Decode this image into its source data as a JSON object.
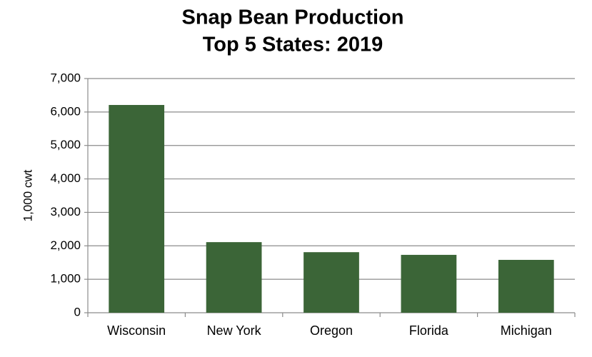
{
  "chart_data": {
    "type": "bar",
    "title": "Snap Bean Production",
    "subtitle": "Top 5 States:  2019",
    "y_label": "1,000 cwt",
    "categories": [
      "Wisconsin",
      "New York",
      "Oregon",
      "Florida",
      "Michigan"
    ],
    "values": [
      6210,
      2110,
      1810,
      1730,
      1580
    ],
    "color": "#3b6537",
    "ylim": [
      0,
      7000
    ],
    "yticks": [
      0,
      {
        "value": 1000,
        "label": "1,000"
      },
      {
        "value": 2000,
        "label": "2,000"
      },
      {
        "value": 3000,
        "label": "3,000"
      },
      {
        "value": 4000,
        "label": "4,000"
      },
      {
        "value": 5000,
        "label": "5,000"
      },
      {
        "value": 6000,
        "label": "6,000"
      },
      {
        "value": 7000,
        "label": "7,000"
      }
    ],
    "grid": true
  }
}
